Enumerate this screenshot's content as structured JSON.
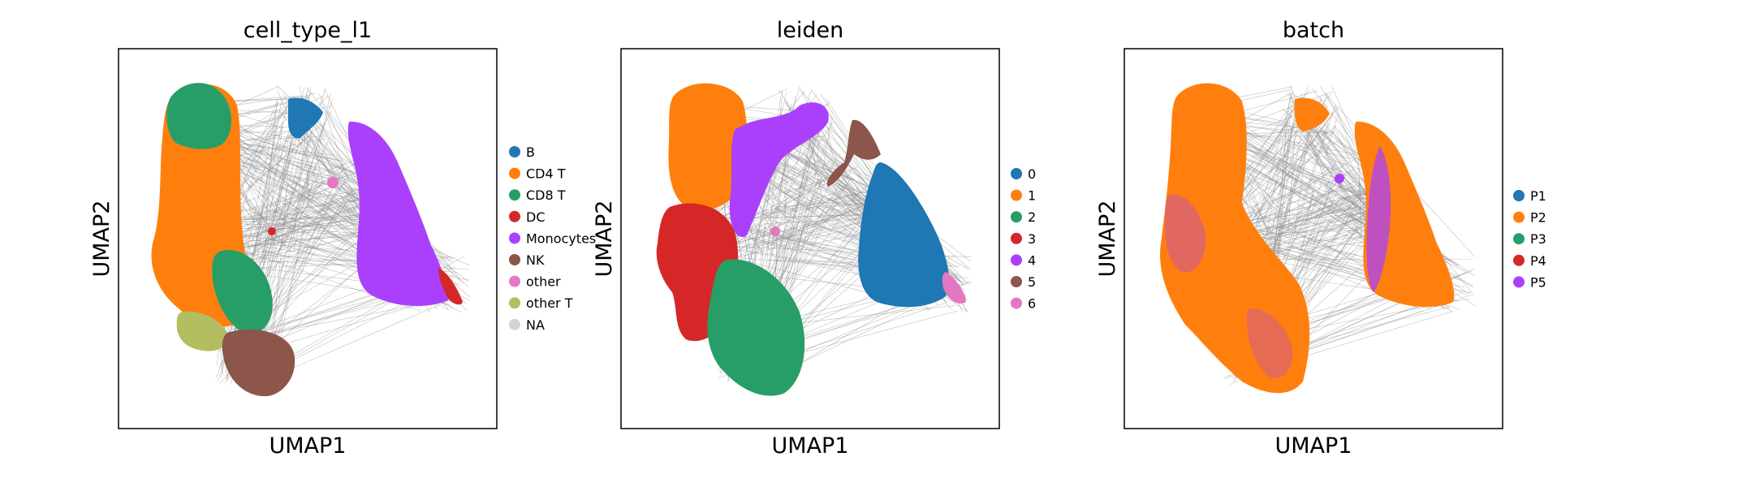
{
  "chart_data": [
    {
      "type": "scatter",
      "title": "cell_type_l1",
      "xlabel": "UMAP1",
      "ylabel": "UMAP2",
      "grid": false,
      "legend_placement": "right",
      "legend": [
        {
          "label": "B",
          "color": "#1f77b4"
        },
        {
          "label": "CD4 T",
          "color": "#ff7f0e"
        },
        {
          "label": "CD8 T",
          "color": "#279e68"
        },
        {
          "label": "DC",
          "color": "#d62728"
        },
        {
          "label": "Monocytes",
          "color": "#aa40fc"
        },
        {
          "label": "NK",
          "color": "#8c564b"
        },
        {
          "label": "other",
          "color": "#e377c2"
        },
        {
          "label": "other T",
          "color": "#b5bd61"
        },
        {
          "label": "NA",
          "color": "#d3d3d3"
        }
      ]
    },
    {
      "type": "scatter",
      "title": "leiden",
      "xlabel": "UMAP1",
      "ylabel": "UMAP2",
      "grid": false,
      "legend_placement": "right",
      "legend": [
        {
          "label": "0",
          "color": "#1f77b4"
        },
        {
          "label": "1",
          "color": "#ff7f0e"
        },
        {
          "label": "2",
          "color": "#279e68"
        },
        {
          "label": "3",
          "color": "#d62728"
        },
        {
          "label": "4",
          "color": "#aa40fc"
        },
        {
          "label": "5",
          "color": "#8c564b"
        },
        {
          "label": "6",
          "color": "#e377c2"
        }
      ]
    },
    {
      "type": "scatter",
      "title": "batch",
      "xlabel": "UMAP1",
      "ylabel": "UMAP2",
      "grid": false,
      "legend_placement": "right",
      "legend": [
        {
          "label": "P1",
          "color": "#1f77b4"
        },
        {
          "label": "P2",
          "color": "#ff7f0e"
        },
        {
          "label": "P3",
          "color": "#279e68"
        },
        {
          "label": "P4",
          "color": "#d62728"
        },
        {
          "label": "P5",
          "color": "#aa40fc"
        }
      ]
    }
  ]
}
